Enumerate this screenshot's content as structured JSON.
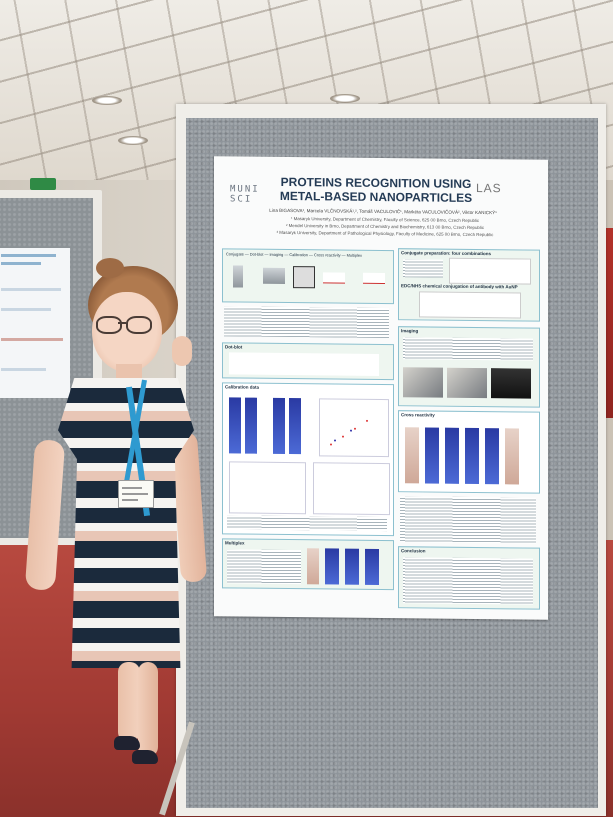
{
  "scene": {
    "description_tag": "conference poster session photo"
  },
  "poster": {
    "logo_left_line1": "MUNI",
    "logo_left_line2": "SCI",
    "logo_right": "LAS",
    "title_line1": "PROTEINS RECOGNITION USING",
    "title_line2": "METAL-BASED NANOPARTICLES",
    "authors": "Lina BIGASOVA¹, Marcela VLČNOVSKÁ¹,², Tomáš VACULOVIČ¹, Markéta VACULOVIČOVÁ², Viktor KANICKÝ¹",
    "affiliation1": "¹ Masaryk University, Department of Chemistry, Faculty of Science, 625 00 Brno, Czech Republic",
    "affiliation2": "² Mendel University in Brno, Department of Chemistry and Biochemistry, 613 00 Brno, Czech Republic",
    "affiliation3": "³ Masaryk University, Department of Pathological Physiology, Faculty of Medicine, 625 00 Brno, Czech Republic",
    "flow": "Conjugate — Dot-blot — Imaging — Calibration — Cross reactivity — Multiplex",
    "section_conjugate": "Conjugate preparation: four combinations",
    "section_edc": "EDC/NHS chemical conjugation of antibody with AuNP",
    "section_dotblot": "Dot-blot",
    "section_imaging": "Imaging",
    "section_calibration": "Calibration data",
    "section_cross": "Cross reactivity",
    "section_multiplex": "Multiplex",
    "section_conclusion": "Conclusion"
  },
  "colors": {
    "poster_title": "#243b55",
    "box_border": "#8cc0cf",
    "box_fill": "#eef6f0",
    "lanyard": "#2e9ad0",
    "floor": "#a13a33"
  }
}
